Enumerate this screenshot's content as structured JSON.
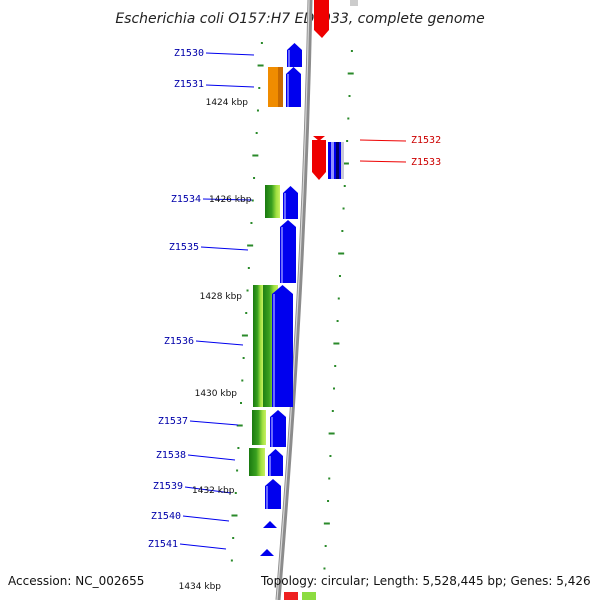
{
  "title": "Escherichia coli O157:H7 EDL933, complete genome",
  "footer": {
    "accession": "Accession: NC_002655",
    "topology": "Topology: circular; Length: 5,528,445 bp; Genes: 5,426"
  },
  "colors": {
    "forward_gene": "#0000ee",
    "reverse_gene": "#ee0000",
    "forward_label": "#0000aa",
    "reverse_label": "#cc0000",
    "orange_block": "#f08c00",
    "green_dark": "#1a7a10",
    "green_light": "#c8f060",
    "tick": "#2a8a2a",
    "backbone": "#999999"
  },
  "genes": [
    {
      "name": "Z1530",
      "strand": "forward"
    },
    {
      "name": "Z1531",
      "strand": "forward"
    },
    {
      "name": "Z1532",
      "strand": "reverse"
    },
    {
      "name": "Z1533",
      "strand": "reverse"
    },
    {
      "name": "Z1534",
      "strand": "forward"
    },
    {
      "name": "Z1535",
      "strand": "forward"
    },
    {
      "name": "Z1536",
      "strand": "forward"
    },
    {
      "name": "Z1537",
      "strand": "forward"
    },
    {
      "name": "Z1538",
      "strand": "forward"
    },
    {
      "name": "Z1539",
      "strand": "forward"
    },
    {
      "name": "Z1540",
      "strand": "forward"
    },
    {
      "name": "Z1541",
      "strand": "forward"
    }
  ],
  "position_marks": [
    "1424 kbp",
    "1426 kbp",
    "1428 kbp",
    "1430 kbp",
    "1432 kbp",
    "1434 kbp"
  ]
}
